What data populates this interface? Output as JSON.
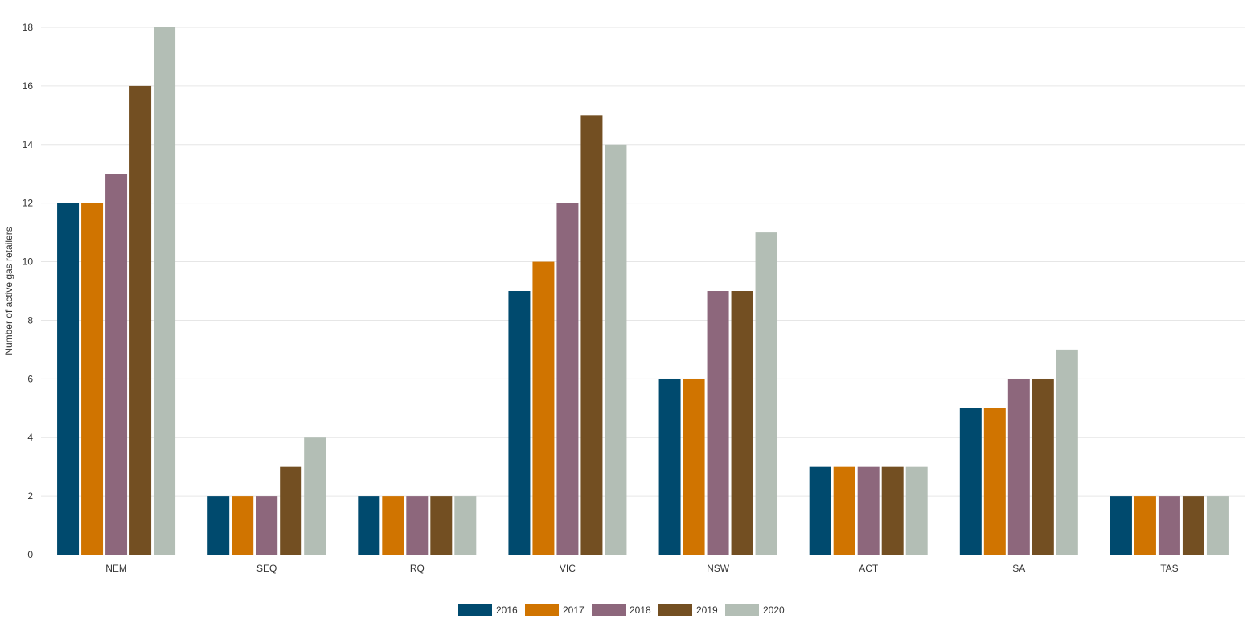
{
  "chart_data": {
    "type": "bar",
    "title": "",
    "xlabel": "",
    "ylabel": "Number of active gas retailers",
    "ylim": [
      0,
      18
    ],
    "yticks": [
      0,
      2,
      4,
      6,
      8,
      10,
      12,
      14,
      16,
      18
    ],
    "grid": true,
    "legend_position": "bottom-center",
    "categories": [
      "NEM",
      "SEQ",
      "RQ",
      "VIC",
      "NSW",
      "ACT",
      "SA",
      "TAS"
    ],
    "series": [
      {
        "name": "2016",
        "color": "#004a6e",
        "values": [
          12,
          2,
          2,
          9,
          6,
          3,
          5,
          2
        ]
      },
      {
        "name": "2017",
        "color": "#d07400",
        "values": [
          12,
          2,
          2,
          10,
          6,
          3,
          5,
          2
        ]
      },
      {
        "name": "2018",
        "color": "#8d677c",
        "values": [
          13,
          2,
          2,
          12,
          9,
          3,
          6,
          2
        ]
      },
      {
        "name": "2019",
        "color": "#734f22",
        "values": [
          16,
          3,
          2,
          15,
          9,
          3,
          6,
          2
        ]
      },
      {
        "name": "2020",
        "color": "#b3beb5",
        "values": [
          18,
          4,
          2,
          14,
          11,
          3,
          7,
          2
        ]
      }
    ]
  }
}
